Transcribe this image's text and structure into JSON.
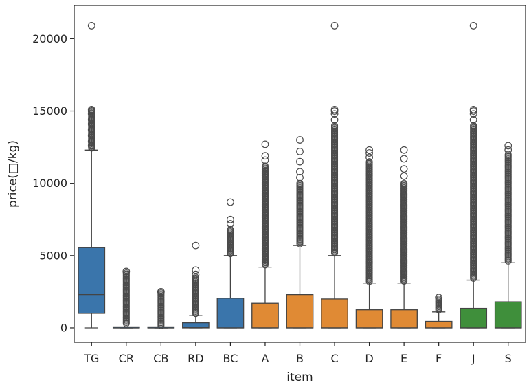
{
  "chart_data": {
    "type": "box",
    "xlabel": "item",
    "ylabel": "price(□/kg)",
    "ylim": [
      -1000,
      22300
    ],
    "yticks": [
      0,
      5000,
      10000,
      15000,
      20000
    ],
    "ytick_labels": [
      "0",
      "5000",
      "10000",
      "15000",
      "20000"
    ],
    "grid": false,
    "legend": "none",
    "colors": {
      "blue": "#3a75ab",
      "orange": "#e08a34",
      "green": "#3f8f3b",
      "line": "#444444",
      "flier": "#4a4a4a",
      "frame": "#222222"
    },
    "categories": [
      "TG",
      "CR",
      "CB",
      "RD",
      "BC",
      "A",
      "B",
      "C",
      "D",
      "E",
      "F",
      "J",
      "S"
    ],
    "boxes": [
      {
        "label": "TG",
        "color_group": "blue",
        "whislo": 0,
        "q1": 1000,
        "med": 2300,
        "q3": 5550,
        "whishi": 12300,
        "fliers_dense": [
          12400,
          15100
        ],
        "fliers": [
          12600,
          12900,
          13300,
          13700,
          14100,
          14400,
          14800,
          15000,
          15100,
          20900
        ]
      },
      {
        "label": "CR",
        "color_group": "blue",
        "whislo": 0,
        "q1": 0,
        "med": 0,
        "q3": 0,
        "whishi": 0,
        "fliers_dense": [
          300,
          3800
        ],
        "fliers": [
          3900
        ]
      },
      {
        "label": "CB",
        "color_group": "blue",
        "whislo": 0,
        "q1": 0,
        "med": 0,
        "q3": 0,
        "whishi": 0,
        "fliers_dense": [
          100,
          2500
        ],
        "fliers": [
          2500
        ]
      },
      {
        "label": "RD",
        "color_group": "blue",
        "whislo": 0,
        "q1": 0,
        "med": 50,
        "q3": 350,
        "whishi": 850,
        "fliers_dense": [
          950,
          3500
        ],
        "fliers": [
          3700,
          4000,
          5700
        ]
      },
      {
        "label": "BC",
        "color_group": "blue",
        "whislo": 0,
        "q1": 0,
        "med": 0,
        "q3": 2050,
        "whishi": 5000,
        "fliers_dense": [
          5100,
          6800
        ],
        "fliers": [
          7200,
          7500,
          8700
        ]
      },
      {
        "label": "A",
        "color_group": "orange",
        "whislo": 0,
        "q1": 0,
        "med": 0,
        "q3": 1700,
        "whishi": 4200,
        "fliers_dense": [
          4300,
          11200
        ],
        "fliers": [
          11600,
          11900,
          12700
        ]
      },
      {
        "label": "B",
        "color_group": "orange",
        "whislo": 0,
        "q1": 0,
        "med": 0,
        "q3": 2300,
        "whishi": 5700,
        "fliers_dense": [
          5800,
          10000
        ],
        "fliers": [
          10400,
          10800,
          11500,
          12200,
          13000
        ]
      },
      {
        "label": "C",
        "color_group": "orange",
        "whislo": 0,
        "q1": 0,
        "med": 0,
        "q3": 2000,
        "whishi": 5000,
        "fliers_dense": [
          5100,
          14000
        ],
        "fliers": [
          14400,
          14800,
          15000,
          15100,
          20900
        ]
      },
      {
        "label": "D",
        "color_group": "orange",
        "whislo": 0,
        "q1": 0,
        "med": 0,
        "q3": 1250,
        "whishi": 3100,
        "fliers_dense": [
          3200,
          11500
        ],
        "fliers": [
          11800,
          12100,
          12300
        ]
      },
      {
        "label": "E",
        "color_group": "orange",
        "whislo": 0,
        "q1": 0,
        "med": 0,
        "q3": 1250,
        "whishi": 3100,
        "fliers_dense": [
          3200,
          10000
        ],
        "fliers": [
          10500,
          11000,
          11700,
          12300
        ]
      },
      {
        "label": "F",
        "color_group": "orange",
        "whislo": 0,
        "q1": 0,
        "med": 0,
        "q3": 450,
        "whishi": 1100,
        "fliers_dense": [
          1200,
          2000
        ],
        "fliers": [
          2100
        ]
      },
      {
        "label": "J",
        "color_group": "green",
        "whislo": 0,
        "q1": 0,
        "med": 0,
        "q3": 1350,
        "whishi": 3300,
        "fliers_dense": [
          3400,
          14000
        ],
        "fliers": [
          14400,
          14800,
          15000,
          15100,
          20900
        ]
      },
      {
        "label": "S",
        "color_group": "green",
        "whislo": 0,
        "q1": 0,
        "med": 0,
        "q3": 1800,
        "whishi": 4500,
        "fliers_dense": [
          4600,
          12000
        ],
        "fliers": [
          12300,
          12600
        ]
      }
    ]
  }
}
